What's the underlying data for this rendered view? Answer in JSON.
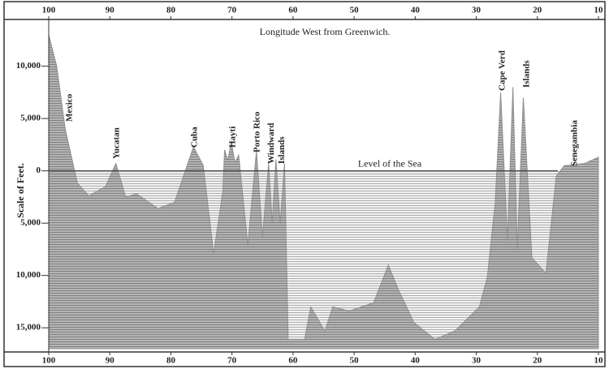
{
  "chart_data": {
    "type": "area",
    "title": "Longitude West from Greenwich.",
    "y_label": "Scale of Feet.",
    "x": [
      100,
      98.7,
      97.3,
      95.3,
      93.4,
      90.7,
      89,
      87.4,
      85.6,
      82.1,
      79.4,
      76.3,
      74.7,
      73,
      71.5,
      71.2,
      70.7,
      70.1,
      69.5,
      68.9,
      67.4,
      66,
      65,
      64,
      63.4,
      62.8,
      62.1,
      61.4,
      60.8,
      58.1,
      57.1,
      54.8,
      53.5,
      50.8,
      48.8,
      46.8,
      44.4,
      42.8,
      40.2,
      36.8,
      33.5,
      29.5,
      28.2,
      26.9,
      26,
      24.9,
      24,
      23.3,
      22.3,
      20.9,
      18.6,
      16.9,
      15.6,
      12.3,
      10
    ],
    "values": [
      13000,
      10000,
      4000,
      -1200,
      -2400,
      -1500,
      700,
      -2500,
      -2200,
      -3600,
      -3000,
      2300,
      500,
      -7900,
      -2000,
      2000,
      1000,
      2700,
      800,
      1500,
      -7100,
      1900,
      -6300,
      700,
      -5000,
      1100,
      -5000,
      700,
      -16100,
      -16100,
      -13000,
      -15300,
      -13000,
      -13400,
      -13000,
      -12600,
      -9000,
      -11300,
      -14500,
      -16100,
      -15300,
      -13000,
      -10200,
      -3000,
      7500,
      -6700,
      8000,
      -7500,
      7000,
      -8300,
      -9800,
      -500,
      500,
      700,
      1300
    ],
    "color": "#8f8f8f",
    "xlim": [
      100,
      10
    ],
    "xticks": [
      100,
      90,
      80,
      70,
      60,
      50,
      40,
      30,
      20,
      10
    ],
    "ylim": [
      -17000,
      14000
    ],
    "yticks": [
      {
        "value": 10000,
        "label": "10,000"
      },
      {
        "value": 5000,
        "label": "5,000"
      },
      0,
      {
        "value": -5000,
        "label": "5,000"
      },
      {
        "value": -10000,
        "label": "10,000"
      },
      {
        "value": -15000,
        "label": "15,000"
      }
    ],
    "sea_label": "Level of the Sea",
    "annotations": [
      "Mexico",
      "Yucatan",
      "Cuba",
      "Hayti",
      "Porto Rico",
      "Windward Islands",
      "Cape Verd",
      "Islands",
      "Senegambia"
    ]
  }
}
